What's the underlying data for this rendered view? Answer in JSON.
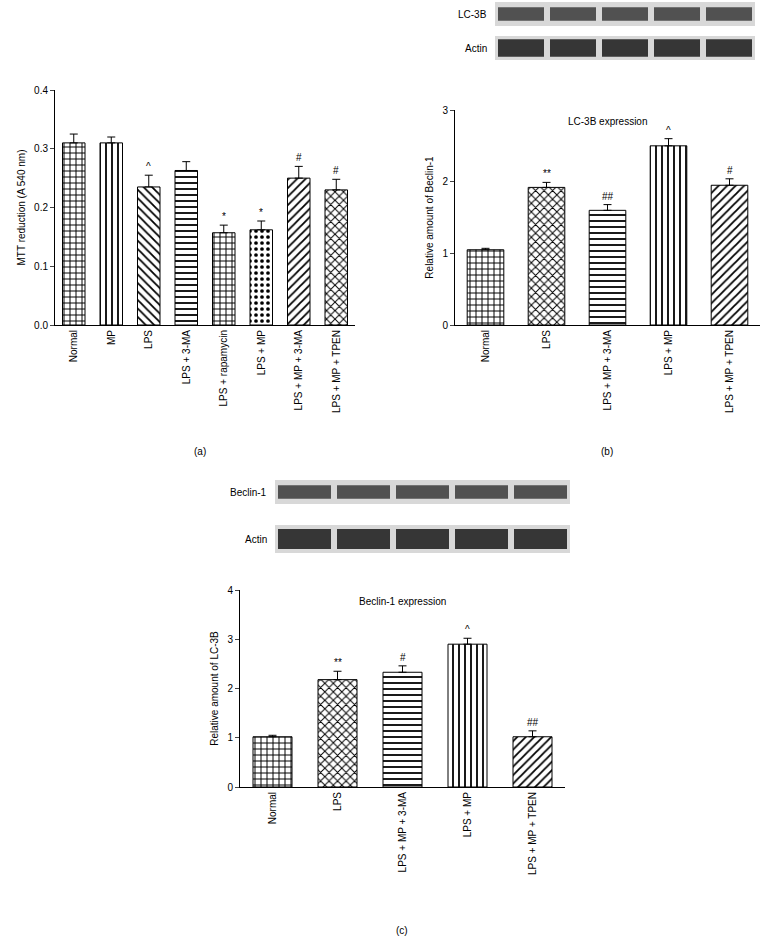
{
  "chart_data": [
    {
      "type": "bar",
      "panel": "(a)",
      "y_label": "MTT reduction (A 540 nm)",
      "color": "#ffffff",
      "categories": [
        "Normal",
        "MP",
        "LPS",
        "LPS + 3-MA",
        "LPS + rapamycin",
        "LPS + MP",
        "LPS + MP + 3-MA",
        "LPS + MP + TPEN"
      ],
      "values": [
        0.31,
        0.31,
        0.235,
        0.263,
        0.157,
        0.162,
        0.25,
        0.23
      ],
      "errors": [
        0.015,
        0.01,
        0.02,
        0.015,
        0.013,
        0.015,
        0.02,
        0.018
      ],
      "significance": [
        null,
        null,
        "^",
        null,
        "*",
        "*",
        "#",
        "#"
      ],
      "ylim": [
        0,
        0.4
      ],
      "yticks": [
        {
          "value": 0,
          "label": "0.0"
        },
        0.1,
        0.2,
        0.3,
        0.4
      ]
    },
    {
      "type": "bar",
      "panel": "(b)",
      "title": "LC-3B expression",
      "y_label": "Relative amount of Beclin-1",
      "color": "#ffffff",
      "blot_labels": [
        "LC-3B",
        "Actin"
      ],
      "categories": [
        "Normal",
        "LPS",
        "LPS + MP + 3-MA",
        "LPS + MP",
        "LPS + MP + TPEN"
      ],
      "values": [
        1.05,
        1.92,
        1.6,
        2.5,
        1.95
      ],
      "errors": [
        0.02,
        0.07,
        0.08,
        0.1,
        0.09
      ],
      "significance": [
        null,
        "**",
        "##",
        "^",
        "#"
      ],
      "ylim": [
        0,
        3
      ],
      "yticks": [
        0,
        1,
        2,
        3
      ]
    },
    {
      "type": "bar",
      "panel": "(c)",
      "title": "Beclin-1 expression",
      "y_label": "Relative amount of LC-3B",
      "color": "#ffffff",
      "blot_labels": [
        "Beclin-1",
        "Actin"
      ],
      "categories": [
        "Normal",
        "LPS",
        "LPS + MP + 3-MA",
        "LPS + MP",
        "LPS + MP + TPEN"
      ],
      "values": [
        1.02,
        2.18,
        2.33,
        2.9,
        1.02
      ],
      "errors": [
        0.03,
        0.17,
        0.13,
        0.12,
        0.12
      ],
      "significance": [
        null,
        "**",
        "#",
        "^",
        "##"
      ],
      "ylim": [
        0,
        4
      ],
      "yticks": [
        0,
        1,
        2,
        3,
        4
      ]
    }
  ]
}
